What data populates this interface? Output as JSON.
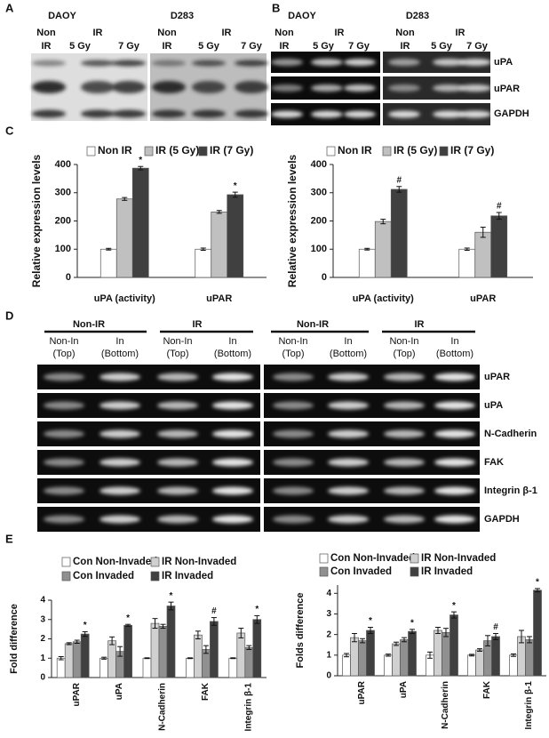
{
  "panel_labels": [
    "A",
    "B",
    "C",
    "D",
    "E"
  ],
  "blot_a": {
    "cell_lines": [
      "DAOY",
      "D283"
    ],
    "columns": [
      [
        "Non",
        "IR",
        "IR",
        "5 Gy",
        "7 Gy"
      ],
      [
        "Non",
        "IR",
        "IR",
        "5 Gy",
        "7 Gy"
      ]
    ]
  },
  "blot_b": {
    "cell_lines": [
      "DAOY",
      "D283"
    ],
    "columns": [
      [
        "Non",
        "IR",
        "IR",
        "5 Gy",
        "7 Gy"
      ],
      [
        "Non",
        "IR",
        "IR",
        "5 Gy",
        "7 Gy"
      ]
    ],
    "rows": [
      "uPA",
      "uPAR",
      "GAPDH"
    ]
  },
  "blot_d": {
    "groups": [
      "Non-IR",
      "IR",
      "Non-IR",
      "IR"
    ],
    "lanes": [
      [
        "Non-In",
        "(Top)"
      ],
      [
        "In",
        "(Bottom)"
      ],
      [
        "Non-In",
        "(Top)"
      ],
      [
        "In",
        "(Bottom)"
      ],
      [
        "Non-In",
        "(Top)"
      ],
      [
        "In",
        "(Bottom)"
      ],
      [
        "Non-In",
        "(Top)"
      ],
      [
        "In",
        "(Bottom)"
      ]
    ],
    "rows": [
      "uPAR",
      "uPA",
      "N-Cadherin",
      "FAK",
      "Integrin β-1",
      "GAPDH"
    ]
  },
  "chart_data": [
    {
      "type": "bar",
      "y_label": "Relative expression levels",
      "categories": [
        "uPA (activity)",
        "uPAR"
      ],
      "series": [
        {
          "name": "Non IR",
          "color": "#ffffff",
          "values": [
            100,
            100
          ],
          "errors": [
            3,
            4
          ]
        },
        {
          "name": "IR (5 Gy)",
          "color": "#c0c0c0",
          "values": [
            278,
            232
          ],
          "errors": [
            5,
            5
          ]
        },
        {
          "name": "IR (7 Gy)",
          "color": "#404040",
          "values": [
            387,
            293
          ],
          "errors": [
            6,
            9
          ],
          "value_annotations": [
            "*",
            "*"
          ]
        }
      ],
      "ylim": [
        0,
        400
      ],
      "yticks": [
        0,
        100,
        200,
        300,
        400
      ]
    },
    {
      "type": "bar",
      "y_label": "Relative expression levels",
      "categories": [
        "uPA (activity)",
        "uPAR"
      ],
      "series": [
        {
          "name": "Non IR",
          "color": "#ffffff",
          "values": [
            100,
            100
          ],
          "errors": [
            3,
            4
          ]
        },
        {
          "name": "IR (5 Gy)",
          "color": "#c0c0c0",
          "values": [
            198,
            160
          ],
          "errors": [
            8,
            18
          ]
        },
        {
          "name": "IR (7 Gy)",
          "color": "#404040",
          "values": [
            312,
            218
          ],
          "errors": [
            10,
            12
          ],
          "value_annotations": [
            "#",
            "#"
          ]
        }
      ],
      "ylim": [
        0,
        400
      ],
      "yticks": [
        0,
        100,
        200,
        300,
        400
      ]
    },
    {
      "type": "bar",
      "y_label": "Fold difference",
      "categories": [
        "uPAR",
        "uPA",
        "N-Cadherin",
        "FAK",
        "Integrin β-1"
      ],
      "series": [
        {
          "name": "Con Non-Invaded",
          "color": "#ffffff",
          "values": [
            1,
            1,
            1,
            1,
            1
          ],
          "errors": [
            0.08,
            0.05,
            0.02,
            0.02,
            0.02
          ]
        },
        {
          "name": "IR Non-Invaded",
          "color": "#d0d0d0",
          "values": [
            1.75,
            1.9,
            2.8,
            2.2,
            2.3
          ],
          "errors": [
            0.05,
            0.2,
            0.25,
            0.2,
            0.25
          ]
        },
        {
          "name": "Con Invaded",
          "color": "#909090",
          "values": [
            1.85,
            1.35,
            2.65,
            1.45,
            1.55
          ],
          "errors": [
            0.08,
            0.25,
            0.1,
            0.2,
            0.1
          ]
        },
        {
          "name": "IR Invaded",
          "color": "#404040",
          "values": [
            2.25,
            2.7,
            3.7,
            2.9,
            3.0
          ],
          "errors": [
            0.12,
            0.05,
            0.2,
            0.2,
            0.2
          ],
          "value_annotations": [
            "*",
            "*",
            "*",
            "#",
            "*"
          ]
        }
      ],
      "ylim": [
        0,
        4
      ],
      "yticks": [
        0,
        1,
        2,
        3,
        4
      ]
    },
    {
      "type": "bar",
      "y_label": "Folds difference",
      "categories": [
        "uPAR",
        "uPA",
        "N-Cadherin",
        "FAK",
        "Integrin β-1"
      ],
      "series": [
        {
          "name": "Con Non-Invaded",
          "color": "#ffffff",
          "values": [
            1,
            1,
            1,
            1,
            1
          ],
          "errors": [
            0.08,
            0.05,
            0.15,
            0.04,
            0.06
          ]
        },
        {
          "name": "IR Non-Invaded",
          "color": "#d0d0d0",
          "values": [
            1.85,
            1.55,
            2.2,
            1.25,
            1.9
          ],
          "errors": [
            0.2,
            0.08,
            0.15,
            0.06,
            0.3
          ]
        },
        {
          "name": "Con Invaded",
          "color": "#909090",
          "values": [
            1.7,
            1.75,
            2.1,
            1.7,
            1.75
          ],
          "errors": [
            0.1,
            0.1,
            0.2,
            0.25,
            0.15
          ]
        },
        {
          "name": "IR Invaded",
          "color": "#404040",
          "values": [
            2.2,
            2.15,
            2.95,
            1.9,
            4.15
          ],
          "errors": [
            0.15,
            0.1,
            0.15,
            0.15,
            0.08
          ],
          "value_annotations": [
            "*",
            "*",
            "*",
            "#",
            "*"
          ]
        }
      ],
      "ylim": [
        0,
        4.4
      ],
      "yticks": [
        0,
        1,
        2,
        3,
        4
      ]
    }
  ]
}
